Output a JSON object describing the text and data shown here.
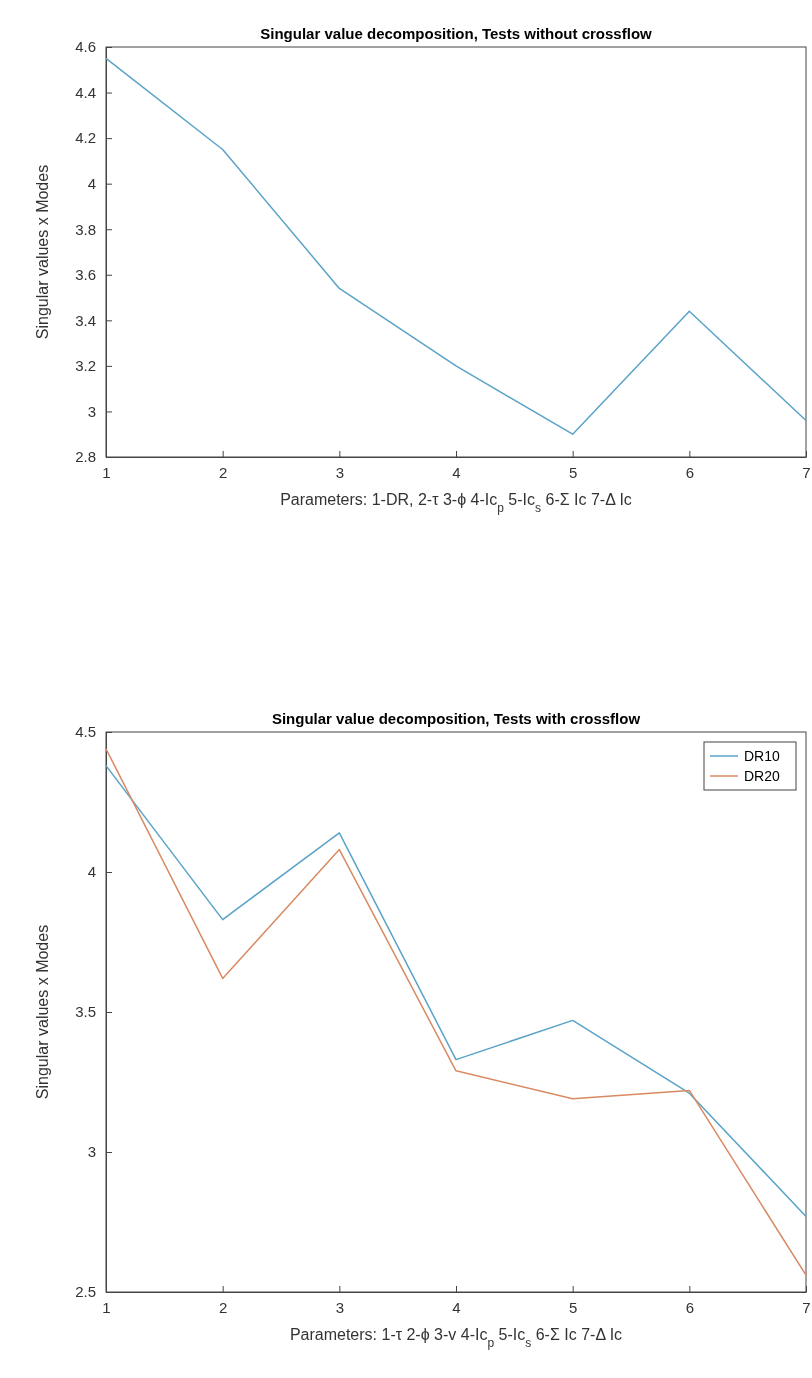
{
  "chart_data": [
    {
      "type": "line",
      "title": "Singular value decomposition, Tests without crossflow",
      "xlabel": "Parameters: 1-DR, 2-τ 3-ϕ 4-Ic$_{p}$ 5-Ic$_{s}$ 6-Σ Ic 7-Δ Ic",
      "ylabel": "Singular values x Modes",
      "x": [
        1,
        2,
        3,
        4,
        5,
        6,
        7
      ],
      "xlim": [
        1,
        7
      ],
      "xticks": [
        1,
        2,
        3,
        4,
        5,
        6,
        7
      ],
      "ylim": [
        2.8,
        4.6
      ],
      "yticks": [
        2.8,
        3,
        3.2,
        3.4,
        3.6,
        3.8,
        4,
        4.2,
        4.4,
        4.6
      ],
      "grid": false,
      "legend": false,
      "series": [
        {
          "color": "#5aa3c8",
          "values": [
            4.55,
            4.15,
            3.54,
            3.2,
            2.9,
            3.44,
            2.96
          ]
        }
      ]
    },
    {
      "type": "line",
      "title": "Singular value decomposition, Tests with crossflow",
      "xlabel": "Parameters: 1-τ 2-ϕ 3-v 4-Ic$_{p}$ 5-Ic$_{s}$ 6-Σ Ic 7-Δ Ic",
      "ylabel": "Singular values x Modes",
      "x": [
        1,
        2,
        3,
        4,
        5,
        6,
        7
      ],
      "xlim": [
        1,
        7
      ],
      "xticks": [
        1,
        2,
        3,
        4,
        5,
        6,
        7
      ],
      "ylim": [
        2.5,
        4.5
      ],
      "yticks": [
        2.5,
        3,
        3.5,
        4,
        4.5
      ],
      "grid": false,
      "legend": "top right",
      "series": [
        {
          "name": "DR10",
          "color": "#5aa3c8",
          "values": [
            4.38,
            3.83,
            4.14,
            3.33,
            3.47,
            3.21,
            2.77
          ]
        },
        {
          "name": "DR20",
          "color": "#d98a62",
          "values": [
            4.44,
            3.62,
            4.08,
            3.29,
            3.19,
            3.22,
            2.56
          ]
        }
      ]
    }
  ]
}
